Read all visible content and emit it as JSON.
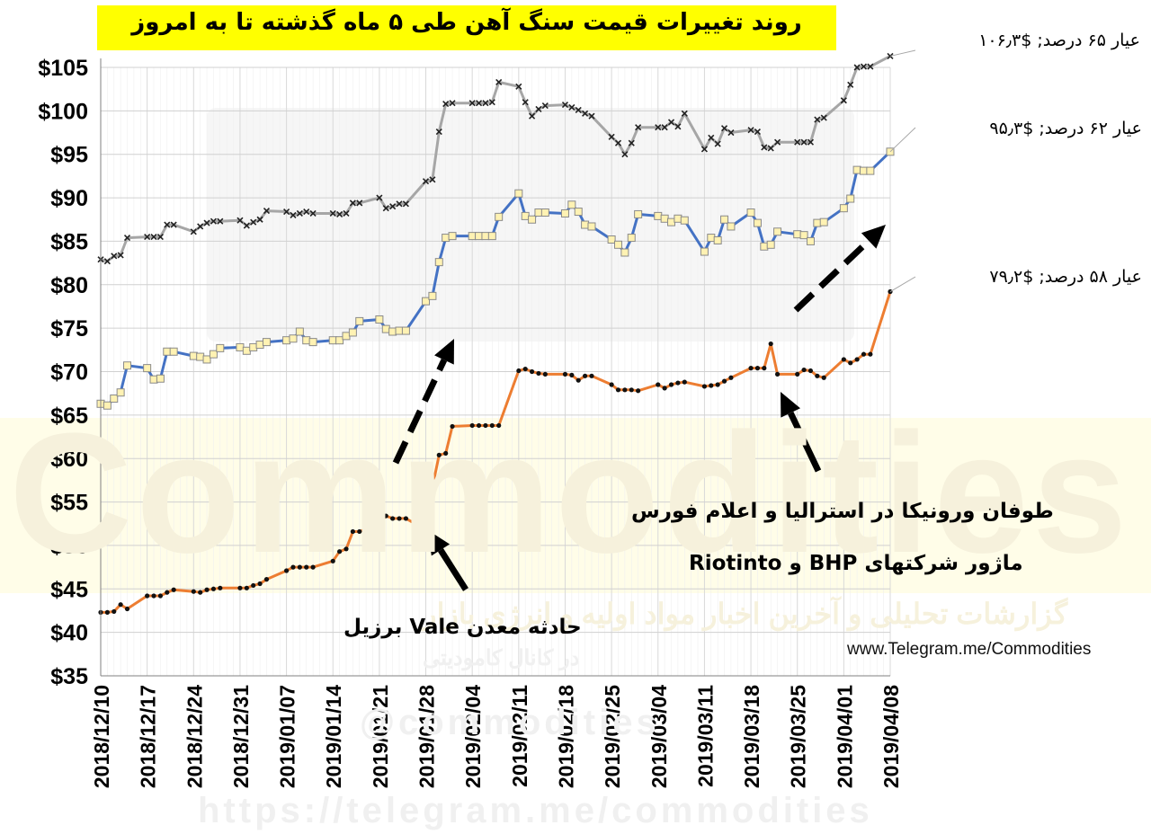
{
  "chart_data": {
    "type": "line",
    "title": "روند تغییرات قیمت سنگ آهن طی ۵ ماه گذشته تا به امروز",
    "xlabel": "",
    "ylabel": "",
    "ylim": [
      35,
      105
    ],
    "grid": true,
    "y_tick_labels": [
      "$35",
      "$40",
      "$45",
      "$50",
      "$55",
      "$60",
      "$65",
      "$70",
      "$75",
      "$80",
      "$85",
      "$90",
      "$95",
      "$100",
      "$105"
    ],
    "x_tick_labels": [
      "2018/12/10",
      "2018/12/17",
      "2018/12/24",
      "2018/12/31",
      "2019/01/07",
      "2019/01/14",
      "2019/01/21",
      "2019/01/28",
      "2019/02/04",
      "2019/02/11",
      "2019/02/18",
      "2019/02/25",
      "2019/03/04",
      "2019/03/11",
      "2019/03/18",
      "2019/03/25",
      "2019/04/01",
      "2019/04/08"
    ],
    "x_days_span": 119,
    "series": [
      {
        "name": "عیار ۶۵ درصد",
        "end_label": "عیار ۶۵ درصد; $۱۰۶٫۳",
        "color": "#a6a6a6",
        "marker": "cross",
        "points": [
          [
            0,
            82.9
          ],
          [
            1,
            82.7
          ],
          [
            2,
            83.3
          ],
          [
            3,
            83.4
          ],
          [
            4,
            85.4
          ],
          [
            7,
            85.5
          ],
          [
            8,
            85.5
          ],
          [
            9,
            85.5
          ],
          [
            10,
            86.9
          ],
          [
            11,
            86.9
          ],
          [
            14,
            86.1
          ],
          [
            15,
            86.7
          ],
          [
            16,
            87.1
          ],
          [
            17,
            87.3
          ],
          [
            18,
            87.3
          ],
          [
            21,
            87.4
          ],
          [
            22,
            86.8
          ],
          [
            23,
            87.2
          ],
          [
            24,
            87.5
          ],
          [
            25,
            88.5
          ],
          [
            28,
            88.4
          ],
          [
            29,
            88.0
          ],
          [
            30,
            88.2
          ],
          [
            31,
            88.4
          ],
          [
            32,
            88.2
          ],
          [
            35,
            88.2
          ],
          [
            36,
            88.1
          ],
          [
            37,
            88.2
          ],
          [
            38,
            89.4
          ],
          [
            39,
            89.4
          ],
          [
            42,
            90.0
          ],
          [
            43,
            88.8
          ],
          [
            44,
            89.0
          ],
          [
            45,
            89.3
          ],
          [
            46,
            89.3
          ],
          [
            49,
            91.9
          ],
          [
            50,
            92.1
          ],
          [
            51,
            97.6
          ],
          [
            52,
            100.8
          ],
          [
            53,
            100.9
          ],
          [
            56,
            100.9
          ],
          [
            57,
            100.9
          ],
          [
            58,
            100.9
          ],
          [
            59,
            101.0
          ],
          [
            60,
            103.3
          ],
          [
            63,
            102.8
          ],
          [
            64,
            101.0
          ],
          [
            65,
            99.4
          ],
          [
            66,
            100.2
          ],
          [
            67,
            100.6
          ],
          [
            70,
            100.7
          ],
          [
            71,
            100.4
          ],
          [
            72,
            100.1
          ],
          [
            73,
            99.7
          ],
          [
            74,
            99.4
          ],
          [
            77,
            97.0
          ],
          [
            78,
            96.3
          ],
          [
            79,
            95.0
          ],
          [
            80,
            96.3
          ],
          [
            81,
            98.1
          ],
          [
            84,
            98.1
          ],
          [
            85,
            98.1
          ],
          [
            86,
            98.7
          ],
          [
            87,
            98.2
          ],
          [
            88,
            99.7
          ],
          [
            91,
            95.6
          ],
          [
            92,
            96.9
          ],
          [
            93,
            96.2
          ],
          [
            94,
            98.0
          ],
          [
            95,
            97.5
          ],
          [
            98,
            97.8
          ],
          [
            99,
            97.6
          ],
          [
            100,
            95.8
          ],
          [
            101,
            95.7
          ],
          [
            102,
            96.4
          ],
          [
            105,
            96.4
          ],
          [
            106,
            96.4
          ],
          [
            107,
            96.4
          ],
          [
            108,
            99.0
          ],
          [
            109,
            99.2
          ],
          [
            112,
            101.2
          ],
          [
            113,
            103.0
          ],
          [
            114,
            105.0
          ],
          [
            115,
            105.1
          ],
          [
            116,
            105.1
          ],
          [
            119,
            106.3
          ]
        ]
      },
      {
        "name": "عیار ۶۲ درصد",
        "end_label": "عیار ۶۲ درصد; $۹۵٫۳",
        "color": "#4472c4",
        "marker": "square",
        "points": [
          [
            0,
            66.3
          ],
          [
            1,
            66.1
          ],
          [
            2,
            66.9
          ],
          [
            3,
            67.6
          ],
          [
            4,
            70.7
          ],
          [
            7,
            70.4
          ],
          [
            8,
            69.1
          ],
          [
            9,
            69.2
          ],
          [
            10,
            72.3
          ],
          [
            11,
            72.3
          ],
          [
            14,
            71.8
          ],
          [
            15,
            71.7
          ],
          [
            16,
            71.4
          ],
          [
            17,
            72.0
          ],
          [
            18,
            72.7
          ],
          [
            21,
            72.8
          ],
          [
            22,
            72.4
          ],
          [
            23,
            72.8
          ],
          [
            24,
            73.1
          ],
          [
            25,
            73.4
          ],
          [
            28,
            73.6
          ],
          [
            29,
            73.8
          ],
          [
            30,
            74.6
          ],
          [
            31,
            73.6
          ],
          [
            32,
            73.4
          ],
          [
            35,
            73.6
          ],
          [
            36,
            73.6
          ],
          [
            37,
            74.1
          ],
          [
            38,
            74.5
          ],
          [
            39,
            75.8
          ],
          [
            42,
            76.0
          ],
          [
            43,
            74.9
          ],
          [
            44,
            74.6
          ],
          [
            45,
            74.7
          ],
          [
            46,
            74.7
          ],
          [
            49,
            78.1
          ],
          [
            50,
            78.7
          ],
          [
            51,
            82.6
          ],
          [
            52,
            85.4
          ],
          [
            53,
            85.6
          ],
          [
            56,
            85.6
          ],
          [
            57,
            85.6
          ],
          [
            58,
            85.6
          ],
          [
            59,
            85.6
          ],
          [
            60,
            87.8
          ],
          [
            63,
            90.5
          ],
          [
            64,
            87.9
          ],
          [
            65,
            87.5
          ],
          [
            66,
            88.3
          ],
          [
            67,
            88.3
          ],
          [
            70,
            88.2
          ],
          [
            71,
            89.2
          ],
          [
            72,
            88.4
          ],
          [
            73,
            86.9
          ],
          [
            74,
            86.7
          ],
          [
            77,
            85.2
          ],
          [
            78,
            84.6
          ],
          [
            79,
            83.7
          ],
          [
            80,
            85.4
          ],
          [
            81,
            88.1
          ],
          [
            84,
            87.9
          ],
          [
            85,
            87.6
          ],
          [
            86,
            87.2
          ],
          [
            87,
            87.6
          ],
          [
            88,
            87.4
          ],
          [
            91,
            83.8
          ],
          [
            92,
            85.4
          ],
          [
            93,
            85.1
          ],
          [
            94,
            87.5
          ],
          [
            95,
            86.7
          ],
          [
            98,
            88.3
          ],
          [
            99,
            87.1
          ],
          [
            100,
            84.4
          ],
          [
            101,
            84.6
          ],
          [
            102,
            86.1
          ],
          [
            105,
            85.8
          ],
          [
            106,
            85.7
          ],
          [
            107,
            85.0
          ],
          [
            108,
            87.1
          ],
          [
            109,
            87.2
          ],
          [
            112,
            88.8
          ],
          [
            113,
            89.9
          ],
          [
            114,
            93.2
          ],
          [
            115,
            93.1
          ],
          [
            116,
            93.1
          ],
          [
            119,
            95.3
          ]
        ]
      },
      {
        "name": "عیار ۵۸ درصد",
        "end_label": "عیار ۵۸ درصد; $۷۹٫۲",
        "color": "#ed7d31",
        "marker": "dot",
        "points": [
          [
            0,
            42.3
          ],
          [
            1,
            42.3
          ],
          [
            2,
            42.4
          ],
          [
            3,
            43.2
          ],
          [
            4,
            42.7
          ],
          [
            7,
            44.2
          ],
          [
            8,
            44.2
          ],
          [
            9,
            44.2
          ],
          [
            10,
            44.6
          ],
          [
            11,
            44.9
          ],
          [
            14,
            44.7
          ],
          [
            15,
            44.6
          ],
          [
            16,
            44.9
          ],
          [
            17,
            45.0
          ],
          [
            18,
            45.1
          ],
          [
            21,
            45.1
          ],
          [
            22,
            45.1
          ],
          [
            23,
            45.4
          ],
          [
            24,
            45.6
          ],
          [
            25,
            46.1
          ],
          [
            28,
            47.1
          ],
          [
            29,
            47.5
          ],
          [
            30,
            47.5
          ],
          [
            31,
            47.5
          ],
          [
            32,
            47.5
          ],
          [
            35,
            48.2
          ],
          [
            36,
            49.3
          ],
          [
            37,
            49.6
          ],
          [
            38,
            51.6
          ],
          [
            39,
            51.6
          ],
          [
            42,
            52.5
          ],
          [
            43,
            53.4
          ],
          [
            44,
            53.1
          ],
          [
            45,
            53.1
          ],
          [
            46,
            53.1
          ],
          [
            49,
            51.8
          ],
          [
            50,
            56.7
          ],
          [
            51,
            60.4
          ],
          [
            52,
            60.6
          ],
          [
            53,
            63.7
          ],
          [
            56,
            63.8
          ],
          [
            57,
            63.8
          ],
          [
            58,
            63.8
          ],
          [
            59,
            63.8
          ],
          [
            60,
            63.8
          ],
          [
            63,
            70.1
          ],
          [
            64,
            70.3
          ],
          [
            65,
            70.0
          ],
          [
            66,
            69.8
          ],
          [
            67,
            69.7
          ],
          [
            70,
            69.7
          ],
          [
            71,
            69.6
          ],
          [
            72,
            69.0
          ],
          [
            73,
            69.5
          ],
          [
            74,
            69.5
          ],
          [
            77,
            68.5
          ],
          [
            78,
            67.9
          ],
          [
            79,
            67.9
          ],
          [
            80,
            67.9
          ],
          [
            81,
            67.8
          ],
          [
            84,
            68.5
          ],
          [
            85,
            68.1
          ],
          [
            86,
            68.5
          ],
          [
            87,
            68.7
          ],
          [
            88,
            68.8
          ],
          [
            91,
            68.3
          ],
          [
            92,
            68.4
          ],
          [
            93,
            68.5
          ],
          [
            94,
            68.9
          ],
          [
            95,
            69.3
          ],
          [
            98,
            70.4
          ],
          [
            99,
            70.4
          ],
          [
            100,
            70.4
          ],
          [
            101,
            73.2
          ],
          [
            102,
            69.7
          ],
          [
            105,
            69.7
          ],
          [
            106,
            70.2
          ],
          [
            107,
            70.1
          ],
          [
            108,
            69.5
          ],
          [
            109,
            69.3
          ],
          [
            112,
            71.4
          ],
          [
            113,
            71.0
          ],
          [
            114,
            71.4
          ],
          [
            115,
            72.0
          ],
          [
            116,
            72.0
          ],
          [
            119,
            79.2
          ]
        ]
      }
    ],
    "annotations": {
      "vale": "حادثه معدن Vale برزیل",
      "storm_line1": "طوفان ورونیکا در استرالیا  و اعلام فورس",
      "storm_line2": "ماژور شرکتهای BHP و Riotinto",
      "url": "www.Telegram.me/Commodities"
    },
    "watermark": {
      "main": "Commodities",
      "line1": "گزارشات تحلیلی و آخرین اخبار مواد اولیه و انرژی بازار",
      "line2": "در کانال کامودیتی",
      "line3": "@commodities",
      "line4": "https://telegram.me/commodities"
    }
  }
}
